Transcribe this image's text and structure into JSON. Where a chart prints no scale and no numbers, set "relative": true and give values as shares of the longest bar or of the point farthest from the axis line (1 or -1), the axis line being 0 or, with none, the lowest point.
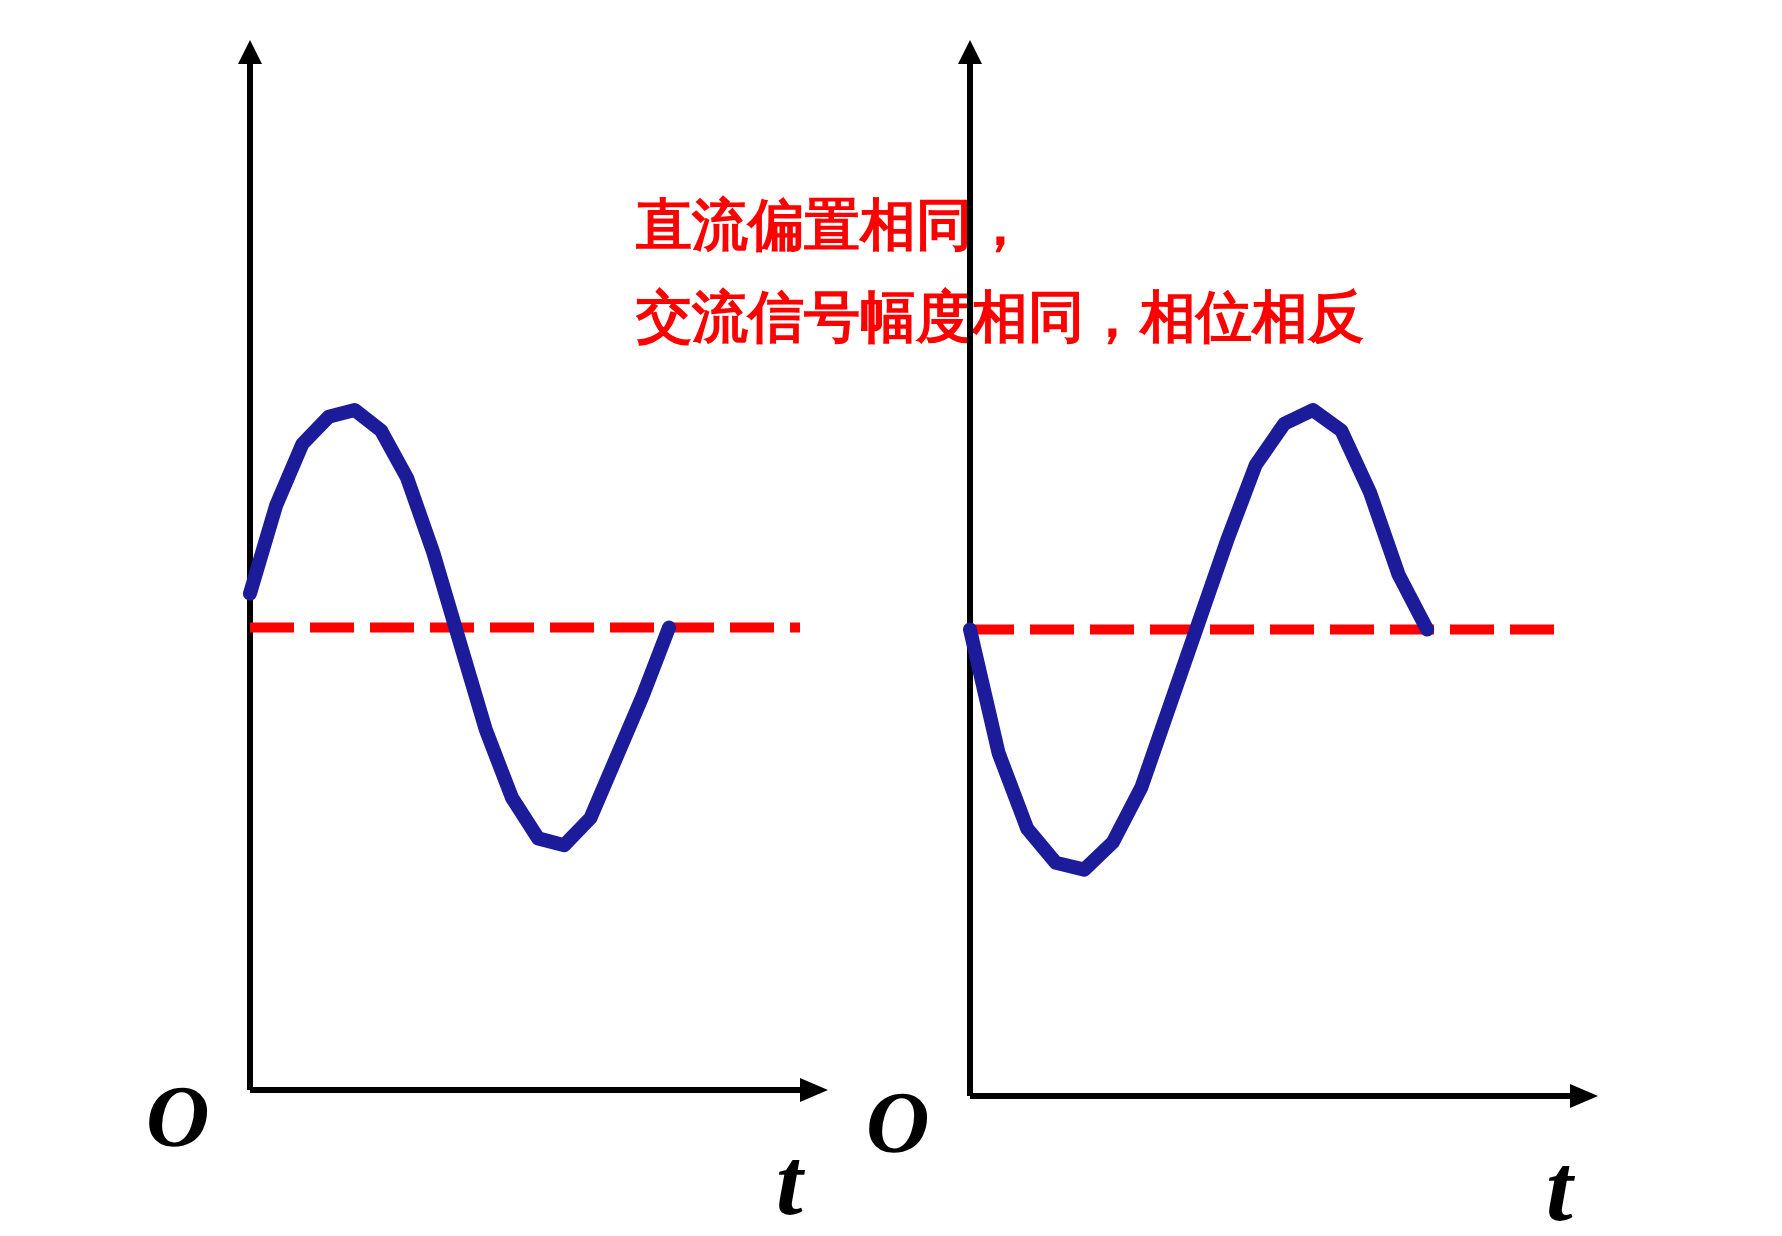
{
  "chart_data": [
    {
      "type": "line",
      "relative": true,
      "xlabel": "t",
      "categories": [
        null,
        null,
        null,
        null,
        null,
        null,
        null,
        null,
        null,
        null,
        null,
        null,
        null,
        null,
        null,
        null,
        null,
        null,
        null,
        null,
        null,
        null
      ],
      "series": [
        {
          "color": "#1c1c9a",
          "line_style": "solid",
          "values": [
            0.73,
            0.86,
            0.95,
            0.99,
            1.0,
            0.97,
            0.9,
            0.79,
            0.66,
            0.53,
            0.43,
            0.37,
            0.36,
            0.4,
            0.49,
            0.58,
            0.68,
            null,
            null,
            null,
            null,
            null
          ]
        }
      ],
      "ref_lines": [
        {
          "axis": "y",
          "value": 0.68,
          "color": "#ff0000",
          "line_style": "dashed"
        }
      ],
      "annotations": [
        "O",
        "直流偏置相同，",
        "交流信号幅度相同，相位相反"
      ]
    },
    {
      "type": "line",
      "relative": true,
      "xlabel": "t",
      "categories": [
        null,
        null,
        null,
        null,
        null,
        null,
        null,
        null,
        null,
        null,
        null,
        null,
        null,
        null,
        null,
        null,
        null,
        null,
        null,
        null,
        null,
        null
      ],
      "series": [
        {
          "color": "#1c1c9a",
          "line_style": "solid",
          "values": [
            0.68,
            0.5,
            0.39,
            0.34,
            0.33,
            0.37,
            0.45,
            0.57,
            0.69,
            0.81,
            0.92,
            0.98,
            1.0,
            0.97,
            0.88,
            0.76,
            0.68,
            null,
            null,
            null,
            null,
            null
          ]
        }
      ],
      "ref_lines": [
        {
          "axis": "y",
          "value": 0.68,
          "color": "#ff0000",
          "line_style": "dashed"
        }
      ],
      "annotations": [
        "O"
      ]
    }
  ]
}
